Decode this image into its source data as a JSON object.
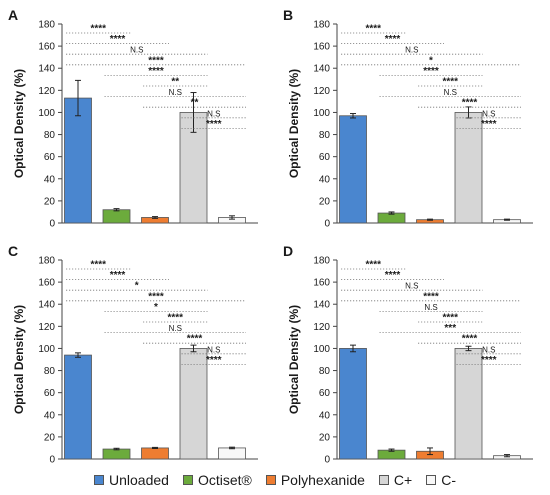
{
  "chart_data": [
    {
      "type": "bar",
      "panel_label": "A",
      "categories": [
        "Unloaded",
        "Octiset®",
        "Polyhexanide",
        "C+",
        "C-"
      ],
      "values": [
        113,
        12,
        5,
        100,
        5
      ],
      "errors": [
        16,
        1,
        0.8,
        18,
        1.5
      ],
      "ylabel": "Optical Density (%)",
      "ylim": [
        0,
        180
      ],
      "yticks": [
        "0",
        "20",
        "40",
        "60",
        "80",
        "100",
        "120",
        "140",
        "160",
        "180"
      ],
      "annotations": [
        {
          "label": "****",
          "from": 0,
          "to": 1
        },
        {
          "label": "****",
          "from": 0,
          "to": 2
        },
        {
          "label": "N.S",
          "from": 0,
          "to": 3
        },
        {
          "label": "****",
          "from": 0,
          "to": 4
        },
        {
          "label": "****",
          "from": 1,
          "to": 3
        },
        {
          "label": "**",
          "from": 2,
          "to": 3
        },
        {
          "label": "N.S",
          "from": 1,
          "to": 4
        },
        {
          "label": "**",
          "from": 2,
          "to": 4
        },
        {
          "label": "N.S",
          "from": 3,
          "to": 4
        },
        {
          "label": "****",
          "from": 3,
          "to": 4
        }
      ]
    },
    {
      "type": "bar",
      "panel_label": "B",
      "categories": [
        "Unloaded",
        "Octiset®",
        "Polyhexanide",
        "C+",
        "C-"
      ],
      "values": [
        97,
        9,
        3,
        100,
        3
      ],
      "errors": [
        2,
        1,
        0.5,
        5,
        0.5
      ],
      "ylabel": "Optical Density (%)",
      "ylim": [
        0,
        180
      ],
      "yticks": [
        "0",
        "20",
        "40",
        "60",
        "80",
        "100",
        "120",
        "140",
        "160",
        "180"
      ],
      "annotations": [
        {
          "label": "****",
          "from": 0,
          "to": 1
        },
        {
          "label": "****",
          "from": 0,
          "to": 2
        },
        {
          "label": "N.S",
          "from": 0,
          "to": 3
        },
        {
          "label": "*",
          "from": 0,
          "to": 4
        },
        {
          "label": "****",
          "from": 1,
          "to": 3
        },
        {
          "label": "****",
          "from": 2,
          "to": 3
        },
        {
          "label": "N.S",
          "from": 1,
          "to": 4
        },
        {
          "label": "****",
          "from": 2,
          "to": 4
        },
        {
          "label": "N.S",
          "from": 3,
          "to": 4
        },
        {
          "label": "****",
          "from": 3,
          "to": 4
        }
      ]
    },
    {
      "type": "bar",
      "panel_label": "C",
      "categories": [
        "Unloaded",
        "Octiset®",
        "Polyhexanide",
        "C+",
        "C-"
      ],
      "values": [
        94,
        9,
        10,
        100,
        10
      ],
      "errors": [
        2,
        0.7,
        0.5,
        3,
        0.7
      ],
      "ylabel": "Optical Density (%)",
      "ylim": [
        0,
        180
      ],
      "yticks": [
        "0",
        "20",
        "40",
        "60",
        "80",
        "100",
        "120",
        "140",
        "160",
        "180"
      ],
      "annotations": [
        {
          "label": "****",
          "from": 0,
          "to": 1
        },
        {
          "label": "****",
          "from": 0,
          "to": 2
        },
        {
          "label": "*",
          "from": 0,
          "to": 3
        },
        {
          "label": "****",
          "from": 0,
          "to": 4
        },
        {
          "label": "*",
          "from": 1,
          "to": 3
        },
        {
          "label": "****",
          "from": 2,
          "to": 3
        },
        {
          "label": "N.S",
          "from": 1,
          "to": 4
        },
        {
          "label": "****",
          "from": 2,
          "to": 4
        },
        {
          "label": "N.S",
          "from": 3,
          "to": 4
        },
        {
          "label": "****",
          "from": 3,
          "to": 4
        }
      ]
    },
    {
      "type": "bar",
      "panel_label": "D",
      "categories": [
        "Unloaded",
        "Octiset®",
        "Polyhexanide",
        "C+",
        "C-"
      ],
      "values": [
        100,
        8,
        7,
        100,
        3
      ],
      "errors": [
        3,
        1,
        3,
        2,
        1
      ],
      "ylabel": "Optical Density (%)",
      "ylim": [
        0,
        180
      ],
      "yticks": [
        "0",
        "20",
        "40",
        "60",
        "80",
        "100",
        "120",
        "140",
        "160",
        "180"
      ],
      "annotations": [
        {
          "label": "****",
          "from": 0,
          "to": 1
        },
        {
          "label": "****",
          "from": 0,
          "to": 2
        },
        {
          "label": "N.S",
          "from": 0,
          "to": 3
        },
        {
          "label": "****",
          "from": 0,
          "to": 4
        },
        {
          "label": "N.S",
          "from": 1,
          "to": 3
        },
        {
          "label": "****",
          "from": 2,
          "to": 3
        },
        {
          "label": "***",
          "from": 1,
          "to": 4
        },
        {
          "label": "****",
          "from": 2,
          "to": 4
        },
        {
          "label": "N.S",
          "from": 3,
          "to": 4
        },
        {
          "label": "****",
          "from": 3,
          "to": 4
        }
      ]
    }
  ],
  "legend": {
    "placement": "bottom",
    "items": [
      {
        "label": "Unloaded",
        "color": "#4a86cf"
      },
      {
        "label": "Octiset®",
        "color": "#6cab3c"
      },
      {
        "label": "Polyhexanide",
        "color": "#ee7d31"
      },
      {
        "label": "C+",
        "color": "#d6d6d6"
      },
      {
        "label": "C-",
        "color": "#f8f8f8"
      }
    ]
  },
  "colors": {
    "bar_outline": "#555555",
    "axis": "#444444",
    "annotation_line": "#777777",
    "text": "#1a1a1a"
  }
}
